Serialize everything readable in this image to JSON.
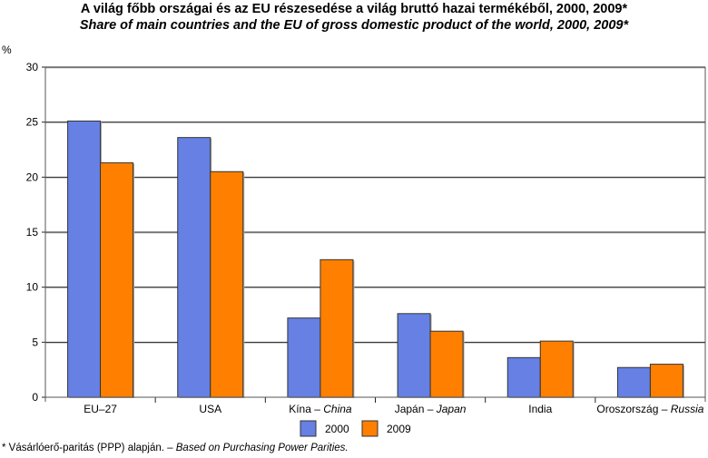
{
  "chart_data": {
    "type": "bar",
    "title": "A világ főbb országai és az EU részesedése a világ bruttó hazai termékéből, 2000, 2009*",
    "subtitle": "Share of main countries and the EU of gross domestic product of the world, 2000, 2009*",
    "ylabel": "%",
    "xlabel": "",
    "ylim": [
      0,
      30
    ],
    "yticks": [
      0,
      5,
      10,
      15,
      20,
      25,
      30
    ],
    "grid": true,
    "categories": [
      {
        "hu": "EU–27",
        "en": ""
      },
      {
        "hu": "USA",
        "en": ""
      },
      {
        "hu": "Kína – ",
        "en": "China"
      },
      {
        "hu": "Japán – ",
        "en": "Japan"
      },
      {
        "hu": "India",
        "en": ""
      },
      {
        "hu": "Oroszország – ",
        "en": "Russia"
      }
    ],
    "series": [
      {
        "name": "2000",
        "color": "#6680e3",
        "values": [
          25.1,
          23.6,
          7.2,
          7.6,
          3.6,
          2.7
        ]
      },
      {
        "name": "2009",
        "color": "#ff8000",
        "values": [
          21.3,
          20.5,
          12.5,
          6.0,
          5.1,
          3.0
        ]
      }
    ],
    "legend": "bottom-center"
  },
  "footnote": {
    "hu": "* Vásárlóerő-paritás (PPP) alapján. – ",
    "en": "Based on Purchasing Power Parities."
  }
}
